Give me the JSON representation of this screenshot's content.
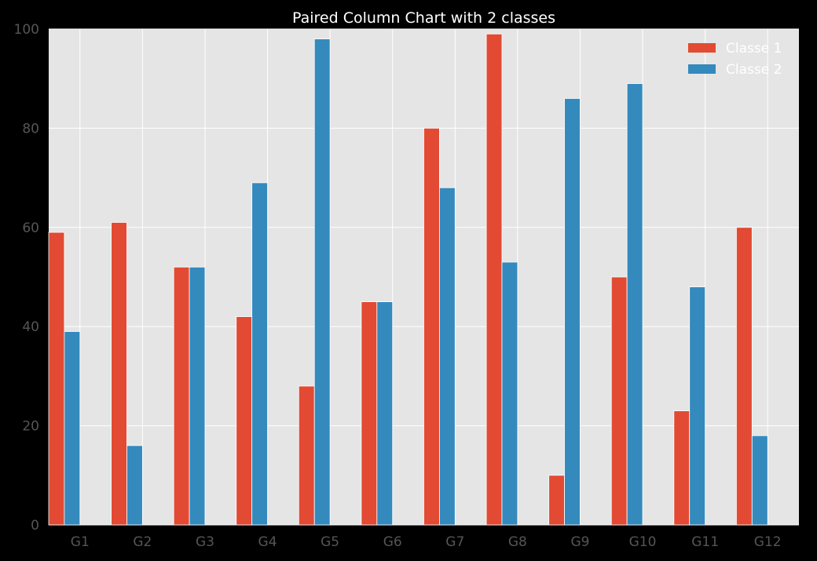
{
  "chart_data": {
    "type": "bar",
    "title": "Paired Column Chart with 2 classes",
    "categories": [
      "G1",
      "G2",
      "G3",
      "G4",
      "G5",
      "G6",
      "G7",
      "G8",
      "G9",
      "G10",
      "G11",
      "G12"
    ],
    "series": [
      {
        "name": "Classe 1",
        "values": [
          59,
          61,
          52,
          42,
          28,
          45,
          80,
          99,
          10,
          50,
          23,
          60
        ],
        "color": "#E24A33"
      },
      {
        "name": "Classe 2",
        "values": [
          39,
          16,
          52,
          69,
          98,
          45,
          68,
          53,
          86,
          89,
          48,
          18
        ],
        "color": "#348ABD"
      }
    ],
    "yticks": [
      0,
      20,
      40,
      60,
      80,
      100
    ],
    "ylim": [
      0,
      100
    ],
    "grid": true,
    "legend_position": "top-right",
    "background_color": "#E5E5E5",
    "figure_color": "#000000",
    "grid_color": "#FFFFFF"
  }
}
